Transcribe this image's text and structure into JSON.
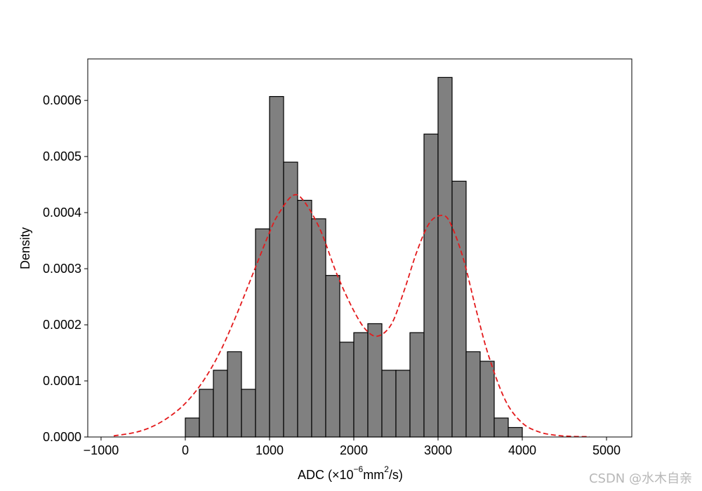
{
  "chart_data": {
    "type": "bar",
    "subtype": "histogram_with_kde",
    "title": "",
    "xlabel": "ADC (×10⁻⁶mm²/s)",
    "xlabel_parts": {
      "base": "ADC (×10",
      "exp1": "−6",
      "mid": "mm",
      "exp2": "2",
      "tail": "/s)"
    },
    "ylabel": "Density",
    "xlim": [
      -1158,
      5300
    ],
    "ylim": [
      0,
      0.000674
    ],
    "grid": false,
    "legend": null,
    "x_ticks": [
      -1000,
      0,
      1000,
      2000,
      3000,
      4000,
      5000
    ],
    "x_tick_labels": [
      "−1000",
      "0",
      "1000",
      "2000",
      "3000",
      "4000",
      "5000"
    ],
    "y_ticks": [
      0,
      0.0001,
      0.0002,
      0.0003,
      0.0004,
      0.0005,
      0.0006
    ],
    "y_tick_labels": [
      "0.0000",
      "0.0001",
      "0.0002",
      "0.0003",
      "0.0004",
      "0.0005",
      "0.0006"
    ],
    "histogram": {
      "bin_start": 0,
      "bin_width": 166.67,
      "bar_color": "#808080",
      "edge_color": "#000000",
      "values": [
        3.38e-05,
        8.5e-05,
        0.000119,
        0.000152,
        8.5e-05,
        0.000371,
        0.000607,
        0.00049,
        0.000422,
        0.000389,
        0.000288,
        0.000169,
        0.000186,
        0.000202,
        0.000119,
        0.000119,
        0.000186,
        0.00054,
        0.000641,
        0.000456,
        0.000152,
        0.000135,
        3.38e-05,
        1.69e-05
      ]
    },
    "kde": {
      "style": "dashed",
      "color": "#e31a1c",
      "x": [
        -850,
        -600,
        -400,
        -200,
        0,
        200,
        400,
        600,
        800,
        1000,
        1100,
        1270,
        1400,
        1600,
        1800,
        2000,
        2150,
        2290,
        2450,
        2600,
        2750,
        2900,
        3050,
        3150,
        3300,
        3450,
        3600,
        3800,
        4000,
        4200,
        4400,
        4600,
        4800
      ],
      "y": [
        2e-06,
        8e-06,
        1.8e-05,
        3.5e-05,
        6e-05,
        9.7e-05,
        0.000148,
        0.000215,
        0.00029,
        0.000365,
        0.000396,
        0.00043,
        0.000422,
        0.00037,
        0.00029,
        0.000225,
        0.00019,
        0.00018,
        0.000202,
        0.000262,
        0.000331,
        0.000382,
        0.000395,
        0.00038,
        0.000318,
        0.000228,
        0.000145,
        6.5e-05,
        2.5e-05,
        9e-06,
        3e-06,
        1e-06,
        5e-07
      ]
    }
  },
  "watermark": "CSDN @水木自亲"
}
